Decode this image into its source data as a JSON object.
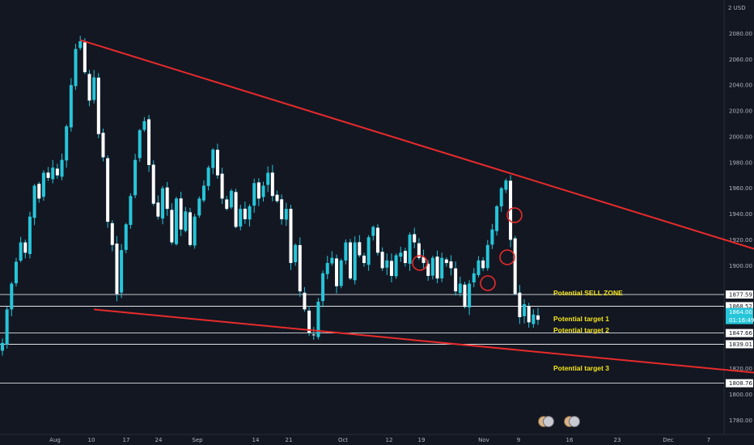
{
  "chart_data": {
    "type": "candlestick",
    "currency": "USD",
    "currency_label": "2 USD",
    "y_axis_ticks": [
      2080,
      2060,
      2040,
      2020,
      2000,
      1980,
      1960,
      1940,
      1920,
      1900,
      1820,
      1800,
      1780
    ],
    "y_axis_tick_labels": [
      "2080.00",
      "2060.00",
      "2040.00",
      "2020.00",
      "2000.00",
      "1980.00",
      "1960.00",
      "1940.00",
      "1920.00",
      "1900.00",
      "1820.00",
      "1800.00",
      "1780.00"
    ],
    "ylim": [
      1769,
      2106
    ],
    "x_axis_labels": [
      "Aug",
      "10",
      "17",
      "24",
      "Sep",
      "14",
      "21",
      "Oct",
      "12",
      "19",
      "Nov",
      "9",
      "16",
      "23",
      "Dec",
      "7"
    ],
    "price_series": [
      1840,
      1866,
      1886,
      1903,
      1918,
      1910,
      1938,
      1962,
      1952,
      1972,
      1968,
      1976,
      1970,
      1982,
      2008,
      2040,
      2068,
      2074,
      2050,
      2028,
      2046,
      2002,
      1984,
      1934,
      1916,
      1878,
      1912,
      1932,
      1954,
      1982,
      2005,
      2012,
      1978,
      1948,
      1938,
      1960,
      1944,
      1918,
      1952,
      1928,
      1942,
      1916,
      1938,
      1952,
      1962,
      1976,
      1990,
      1970,
      1952,
      1944,
      1958,
      1930,
      1944,
      1936,
      1946,
      1964,
      1952,
      1962,
      1972,
      1954,
      1950,
      1936,
      1944,
      1902,
      1916,
      1880,
      1866,
      1848,
      1846,
      1872,
      1894,
      1902,
      1906,
      1884,
      1904,
      1918,
      1890,
      1918,
      1908,
      1902,
      1922,
      1930,
      1910,
      1898,
      1904,
      1892,
      1908,
      1910,
      1902,
      1924,
      1918,
      1906,
      1902,
      1892,
      1906,
      1890,
      1906,
      1902,
      1898,
      1880,
      1886,
      1868,
      1886,
      1894,
      1904,
      1898,
      1916,
      1928,
      1946,
      1960,
      1966,
      1920,
      1878,
      1860,
      1870,
      1856,
      1862,
      1858
    ],
    "horizontal_levels": [
      {
        "value": 1877.59,
        "label": "1877.59"
      },
      {
        "value": 1868.52,
        "label": "1868.52"
      },
      {
        "value": 1847.66,
        "label": "1847.66"
      },
      {
        "value": 1839.01,
        "label": "1839.01"
      },
      {
        "value": 1808.76,
        "label": "1808.76"
      }
    ],
    "current_price": {
      "value": 1864.0,
      "label": "1864.00",
      "sub_label": "01:16:49"
    },
    "annotations": [
      "Potential SELL ZONE",
      "Potential target 1",
      "Potential target 2",
      "Potential target 3"
    ],
    "trend_lines": [
      {
        "name": "upper",
        "from": [
          "Aug 7",
          2075
        ],
        "to": [
          "Dec 9",
          1916
        ]
      },
      {
        "name": "lower",
        "from": [
          "Aug 10",
          1866
        ],
        "to": [
          "Dec 9",
          1818
        ]
      }
    ],
    "colors": {
      "background": "#131722",
      "candles": "#26c6da",
      "trend_lines": "#e82b2b",
      "annotation_text": "#f5e51a",
      "current_price_bg": "#26c6da",
      "level_lines": "#ffffff"
    }
  }
}
